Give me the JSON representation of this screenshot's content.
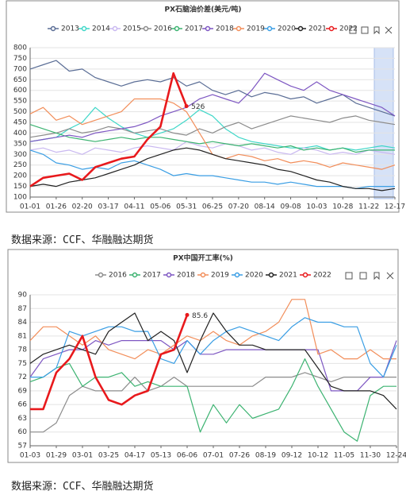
{
  "chart_data": [
    {
      "type": "line",
      "title": "PX石脑油价差(美元/吨)",
      "categories": [
        "01-01",
        null,
        "01-26",
        null,
        "02-20",
        null,
        "03-17",
        null,
        "04-11",
        null,
        "05-06",
        null,
        "05-31",
        null,
        "06-25",
        null,
        "07-20",
        null,
        "08-14",
        null,
        "09-08",
        null,
        "10-03",
        null,
        "10-28",
        null,
        "11-22",
        null,
        "12-17"
      ],
      "ylim": [
        100,
        800
      ],
      "yticks": [
        100,
        150,
        200,
        250,
        300,
        350,
        400,
        450,
        500,
        550,
        600,
        650,
        700,
        750,
        800
      ],
      "grid": true,
      "series": [
        {
          "name": "2013",
          "color": "#5b6e96",
          "values": [
            700,
            720,
            740,
            690,
            700,
            660,
            640,
            620,
            640,
            650,
            640,
            660,
            620,
            640,
            600,
            580,
            600,
            570,
            590,
            580,
            560,
            570,
            540,
            560,
            580,
            540,
            520,
            500,
            480
          ]
        },
        {
          "name": "2014",
          "color": "#3fd7c8",
          "values": [
            360,
            370,
            380,
            420,
            450,
            520,
            470,
            430,
            400,
            380,
            400,
            420,
            460,
            510,
            480,
            420,
            380,
            360,
            350,
            340,
            330,
            330,
            340,
            320,
            330,
            320,
            330,
            340,
            330
          ]
        },
        {
          "name": "2015",
          "color": "#c9b8f0",
          "values": [
            320,
            330,
            310,
            320,
            300,
            330,
            320,
            310,
            330,
            340,
            330,
            320,
            360,
            340,
            330,
            350,
            340,
            320,
            330,
            310,
            300,
            330,
            320,
            300,
            310,
            300,
            320,
            310,
            300
          ]
        },
        {
          "name": "2016",
          "color": "#8c8c8c",
          "values": [
            380,
            390,
            400,
            420,
            400,
            410,
            430,
            420,
            400,
            410,
            420,
            400,
            390,
            420,
            400,
            430,
            450,
            420,
            440,
            460,
            480,
            470,
            460,
            450,
            470,
            480,
            460,
            450,
            440
          ]
        },
        {
          "name": "2017",
          "color": "#3cb371",
          "values": [
            440,
            420,
            400,
            380,
            370,
            360,
            370,
            380,
            370,
            380,
            380,
            370,
            360,
            350,
            360,
            350,
            340,
            350,
            340,
            330,
            340,
            320,
            330,
            320,
            330,
            310,
            320,
            320,
            320
          ]
        },
        {
          "name": "2018",
          "color": "#7e57c2",
          "values": [
            360,
            370,
            380,
            390,
            380,
            400,
            410,
            420,
            430,
            450,
            480,
            500,
            520,
            560,
            580,
            560,
            540,
            600,
            680,
            650,
            620,
            600,
            640,
            600,
            580,
            560,
            540,
            520,
            480
          ]
        },
        {
          "name": "2019",
          "color": "#f28e5a",
          "values": [
            490,
            520,
            460,
            480,
            440,
            460,
            480,
            500,
            560,
            560,
            560,
            540,
            500,
            400,
            300,
            280,
            300,
            290,
            270,
            280,
            260,
            270,
            260,
            240,
            260,
            250,
            240,
            230,
            250
          ]
        },
        {
          "name": "2020",
          "color": "#3a9ee4",
          "values": [
            320,
            300,
            260,
            250,
            230,
            240,
            230,
            260,
            270,
            250,
            230,
            200,
            210,
            200,
            200,
            190,
            180,
            170,
            170,
            160,
            170,
            160,
            150,
            150,
            150,
            140,
            150,
            150,
            150
          ]
        },
        {
          "name": "2021",
          "color": "#222222",
          "values": [
            150,
            160,
            150,
            170,
            180,
            190,
            210,
            230,
            250,
            280,
            300,
            320,
            330,
            320,
            300,
            280,
            270,
            260,
            250,
            230,
            220,
            200,
            180,
            170,
            150,
            140,
            140,
            130,
            140
          ]
        },
        {
          "name": "2022",
          "color": "#e8191c",
          "end_label": true,
          "values": [
            150,
            190,
            200,
            210,
            180,
            240,
            260,
            280,
            290,
            370,
            430,
            680,
            526,
            null,
            null,
            null,
            null,
            null,
            null,
            null,
            null,
            null,
            null,
            null,
            null,
            null,
            null,
            null,
            null
          ]
        }
      ]
    },
    {
      "type": "line",
      "title": "PX中国开工率(%)",
      "categories": [
        "01-03",
        null,
        "01-29",
        null,
        "03-01",
        null,
        "03-25",
        null,
        "04-17",
        null,
        "05-13",
        null,
        "06-06",
        null,
        "07-01",
        null,
        "07-26",
        null,
        "08-19",
        null,
        "09-12",
        null,
        "10-12",
        null,
        "11-05",
        null,
        "11-30",
        null,
        "12-24"
      ],
      "ylim": [
        57,
        90
      ],
      "yticks": [
        57,
        60,
        63,
        66,
        69,
        72,
        75,
        78,
        81,
        84,
        87,
        90
      ],
      "grid": true,
      "series": [
        {
          "name": "2016",
          "color": "#8c8c8c",
          "values": [
            60,
            60,
            62,
            68,
            70,
            69,
            69,
            69,
            72,
            69,
            70,
            72,
            70,
            70,
            70,
            70,
            70,
            70,
            72,
            72,
            72,
            73,
            72,
            71,
            72,
            72,
            72,
            72,
            72
          ]
        },
        {
          "name": "2017",
          "color": "#3cb371",
          "values": [
            71,
            72,
            74,
            75,
            70,
            72,
            72,
            73,
            70,
            71,
            70,
            70,
            70,
            60,
            66,
            62,
            66,
            63,
            64,
            65,
            70,
            76,
            70,
            65,
            60,
            58,
            68,
            70,
            70
          ]
        },
        {
          "name": "2018",
          "color": "#7e57c2",
          "values": [
            72,
            76,
            77,
            78,
            78,
            80,
            79,
            80,
            80,
            80,
            80,
            78,
            80,
            77,
            77,
            78,
            78,
            78,
            78,
            78,
            78,
            78,
            78,
            69,
            69,
            69,
            72,
            72,
            80
          ]
        },
        {
          "name": "2019",
          "color": "#f28e5a",
          "values": [
            80,
            83,
            83,
            81,
            79,
            81,
            78,
            77,
            76,
            78,
            77,
            79,
            81,
            80,
            82,
            80,
            79,
            81,
            82,
            84,
            89,
            89,
            77,
            78,
            76,
            76,
            78,
            76,
            76
          ]
        },
        {
          "name": "2020",
          "color": "#3a9ee4",
          "values": [
            72,
            72,
            74,
            82,
            81,
            82,
            83,
            83,
            82,
            82,
            76,
            75,
            80,
            77,
            80,
            82,
            83,
            82,
            81,
            80,
            83,
            85,
            84,
            84,
            83,
            83,
            75,
            72,
            79
          ]
        },
        {
          "name": "2021",
          "color": "#222222",
          "values": [
            75,
            77,
            78,
            79,
            78,
            77,
            82,
            84,
            86,
            80,
            82,
            80,
            73,
            80,
            86,
            82,
            79,
            79,
            78,
            78,
            78,
            78,
            74,
            70,
            69,
            69,
            69,
            68,
            65
          ]
        },
        {
          "name": "2022",
          "color": "#e8191c",
          "end_label": true,
          "values": [
            65,
            65,
            73,
            76,
            81,
            72,
            67,
            66,
            68,
            69,
            77,
            78,
            85.6,
            null,
            null,
            null,
            null,
            null,
            null,
            null,
            null,
            null,
            null,
            null,
            null,
            null,
            null,
            null,
            null
          ]
        }
      ]
    }
  ],
  "sources": [
    "数据来源：CCF、华融融达期货",
    "数据来源：CCF、华融融达期货"
  ]
}
